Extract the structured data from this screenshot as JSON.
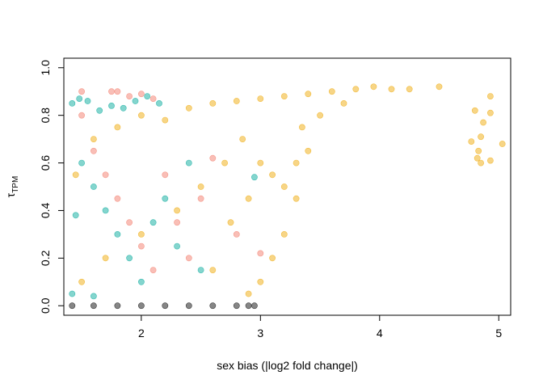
{
  "chart_data": {
    "type": "scatter",
    "title": "",
    "xlabel": "sex bias (|log2 fold change|)",
    "ylabel_main": "τ",
    "ylabel_sub": "TPM",
    "xlim": [
      1.35,
      5.1
    ],
    "ylim": [
      -0.04,
      1.04
    ],
    "x_ticks": [
      2,
      3,
      4,
      5
    ],
    "y_ticks": [
      0.0,
      0.2,
      0.4,
      0.6,
      0.8,
      1.0
    ],
    "x_tick_labels": [
      "2",
      "3",
      "4",
      "5"
    ],
    "y_tick_labels": [
      "0.0",
      "0.2",
      "0.4",
      "0.6",
      "0.8",
      "1.0"
    ],
    "grid": false,
    "legend": "none",
    "series": [
      {
        "color": "#F0B323",
        "points": [
          [
            1.45,
            0.55
          ],
          [
            1.6,
            0.7
          ],
          [
            1.8,
            0.75
          ],
          [
            2.0,
            0.8
          ],
          [
            2.2,
            0.78
          ],
          [
            2.4,
            0.83
          ],
          [
            2.6,
            0.85
          ],
          [
            2.8,
            0.86
          ],
          [
            3.0,
            0.87
          ],
          [
            3.2,
            0.88
          ],
          [
            3.4,
            0.89
          ],
          [
            3.6,
            0.9
          ],
          [
            3.8,
            0.91
          ],
          [
            3.95,
            0.92
          ],
          [
            4.1,
            0.91
          ],
          [
            4.25,
            0.91
          ],
          [
            4.5,
            0.92
          ],
          [
            3.0,
            0.6
          ],
          [
            3.1,
            0.55
          ],
          [
            3.2,
            0.5
          ],
          [
            3.3,
            0.45
          ],
          [
            3.2,
            0.3
          ],
          [
            3.1,
            0.2
          ],
          [
            3.0,
            0.1
          ],
          [
            2.9,
            0.05
          ],
          [
            3.35,
            0.75
          ],
          [
            3.5,
            0.8
          ],
          [
            3.7,
            0.85
          ],
          [
            3.4,
            0.65
          ],
          [
            3.3,
            0.6
          ],
          [
            4.77,
            0.69
          ],
          [
            4.82,
            0.62
          ],
          [
            4.83,
            0.65
          ],
          [
            4.85,
            0.6
          ],
          [
            4.8,
            0.82
          ],
          [
            4.87,
            0.77
          ],
          [
            4.93,
            0.88
          ],
          [
            4.93,
            0.81
          ],
          [
            4.93,
            0.61
          ],
          [
            5.03,
            0.68
          ],
          [
            4.85,
            0.71
          ],
          [
            1.5,
            0.1
          ],
          [
            1.7,
            0.2
          ],
          [
            2.0,
            0.3
          ],
          [
            2.3,
            0.4
          ],
          [
            2.5,
            0.5
          ],
          [
            2.7,
            0.6
          ],
          [
            2.85,
            0.7
          ],
          [
            2.6,
            0.15
          ],
          [
            2.75,
            0.35
          ],
          [
            2.9,
            0.45
          ]
        ]
      },
      {
        "color": "#1FB3A6",
        "points": [
          [
            1.42,
            0.85
          ],
          [
            1.48,
            0.87
          ],
          [
            1.55,
            0.86
          ],
          [
            1.65,
            0.82
          ],
          [
            1.75,
            0.84
          ],
          [
            1.85,
            0.83
          ],
          [
            1.95,
            0.86
          ],
          [
            2.05,
            0.88
          ],
          [
            2.15,
            0.85
          ],
          [
            1.5,
            0.6
          ],
          [
            1.6,
            0.5
          ],
          [
            1.7,
            0.4
          ],
          [
            1.8,
            0.3
          ],
          [
            1.9,
            0.2
          ],
          [
            2.0,
            0.1
          ],
          [
            2.1,
            0.35
          ],
          [
            2.2,
            0.45
          ],
          [
            2.3,
            0.25
          ],
          [
            2.4,
            0.6
          ],
          [
            2.5,
            0.15
          ],
          [
            1.45,
            0.38
          ],
          [
            2.95,
            0.54
          ],
          [
            1.42,
            0.05
          ],
          [
            1.6,
            0.04
          ]
        ]
      },
      {
        "color": "#F4897A",
        "points": [
          [
            1.75,
            0.9
          ],
          [
            1.8,
            0.9
          ],
          [
            1.9,
            0.88
          ],
          [
            2.0,
            0.89
          ],
          [
            2.1,
            0.87
          ],
          [
            1.5,
            0.8
          ],
          [
            1.6,
            0.65
          ],
          [
            1.7,
            0.55
          ],
          [
            1.8,
            0.45
          ],
          [
            1.9,
            0.35
          ],
          [
            2.0,
            0.25
          ],
          [
            2.1,
            0.15
          ],
          [
            2.2,
            0.55
          ],
          [
            2.3,
            0.35
          ],
          [
            2.4,
            0.2
          ],
          [
            2.5,
            0.45
          ],
          [
            2.8,
            0.3
          ],
          [
            3.0,
            0.22
          ],
          [
            2.6,
            0.62
          ],
          [
            1.5,
            0.9
          ]
        ]
      },
      {
        "color": "#222222",
        "points": [
          [
            1.42,
            0.0
          ],
          [
            1.6,
            0.0
          ],
          [
            1.8,
            0.0
          ],
          [
            2.0,
            0.0
          ],
          [
            2.2,
            0.0
          ],
          [
            2.4,
            0.0
          ],
          [
            2.6,
            0.0
          ],
          [
            2.8,
            0.0
          ],
          [
            2.9,
            0.0
          ],
          [
            2.95,
            0.0
          ]
        ]
      }
    ]
  }
}
